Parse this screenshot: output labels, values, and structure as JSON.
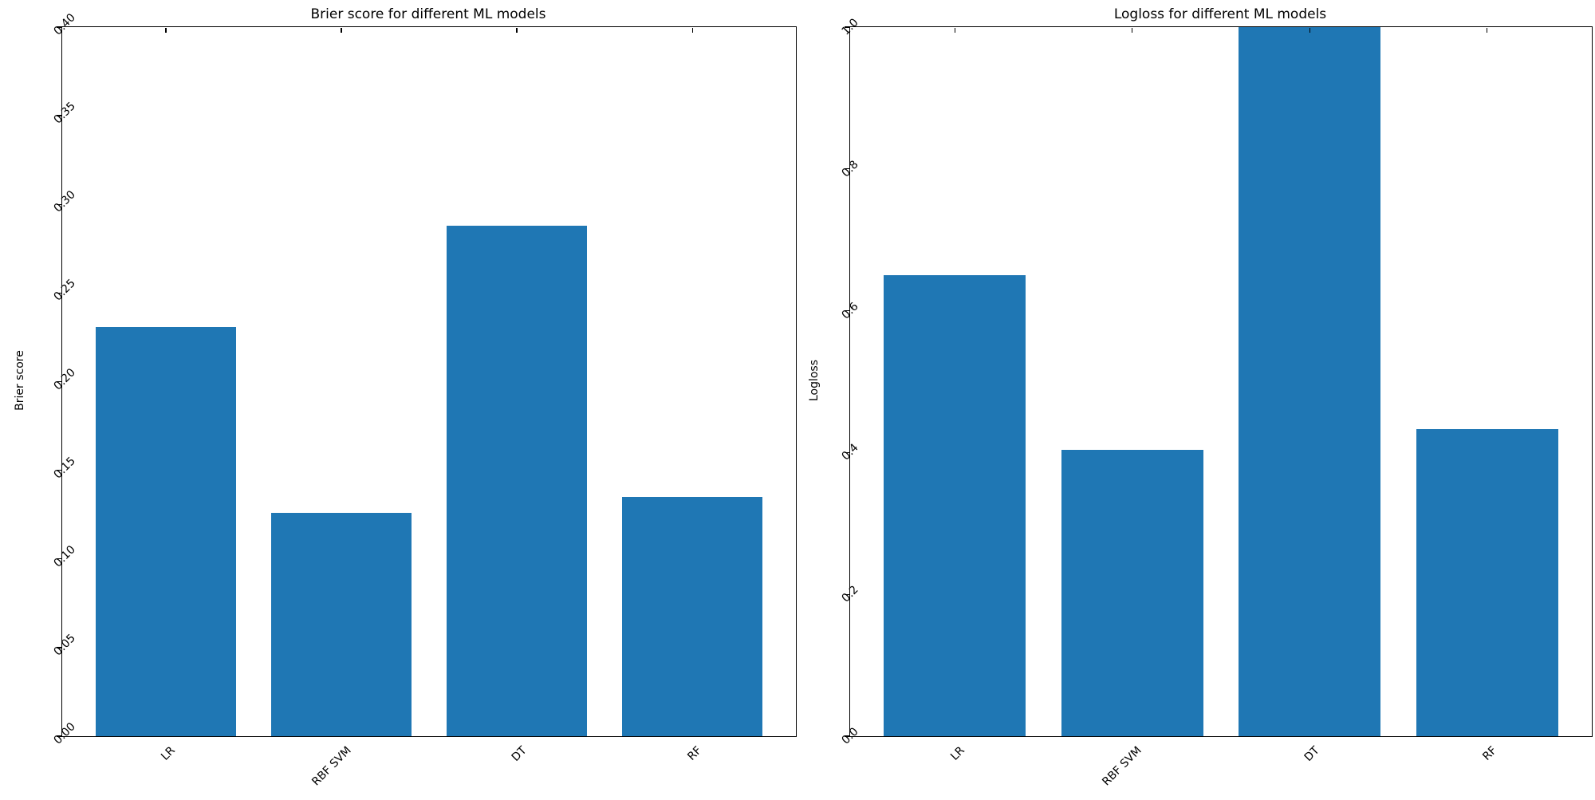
{
  "figure": {
    "background": "#ffffff",
    "text_color": "#000000",
    "spine_color": "#000000"
  },
  "chart_data": [
    {
      "type": "bar",
      "title": "Brier score for different ML models",
      "xlabel": "",
      "ylabel": "Brier score",
      "categories": [
        "LR",
        "RBF SVM",
        "DT",
        "RF"
      ],
      "values": [
        0.231,
        0.126,
        0.288,
        0.135
      ],
      "ylim": [
        0,
        0.4
      ],
      "yticks": [
        "0.00",
        "0.05",
        "0.10",
        "0.15",
        "0.20",
        "0.25",
        "0.30",
        "0.35",
        "0.40"
      ],
      "bar_color": "#1f77b4",
      "tick_label_rotation": 45,
      "grid": false,
      "legend": null
    },
    {
      "type": "bar",
      "title": "Logloss for different ML models",
      "xlabel": "",
      "ylabel": "Logloss",
      "categories": [
        "LR",
        "RBF SVM",
        "DT",
        "RF"
      ],
      "values": [
        0.65,
        0.404,
        1.0,
        0.433
      ],
      "ylim": [
        0,
        1.0
      ],
      "yticks": [
        "0.0",
        "0.2",
        "0.4",
        "0.6",
        "0.8",
        "1.0"
      ],
      "bar_color": "#1f77b4",
      "tick_label_rotation": 45,
      "grid": false,
      "legend": null
    }
  ]
}
